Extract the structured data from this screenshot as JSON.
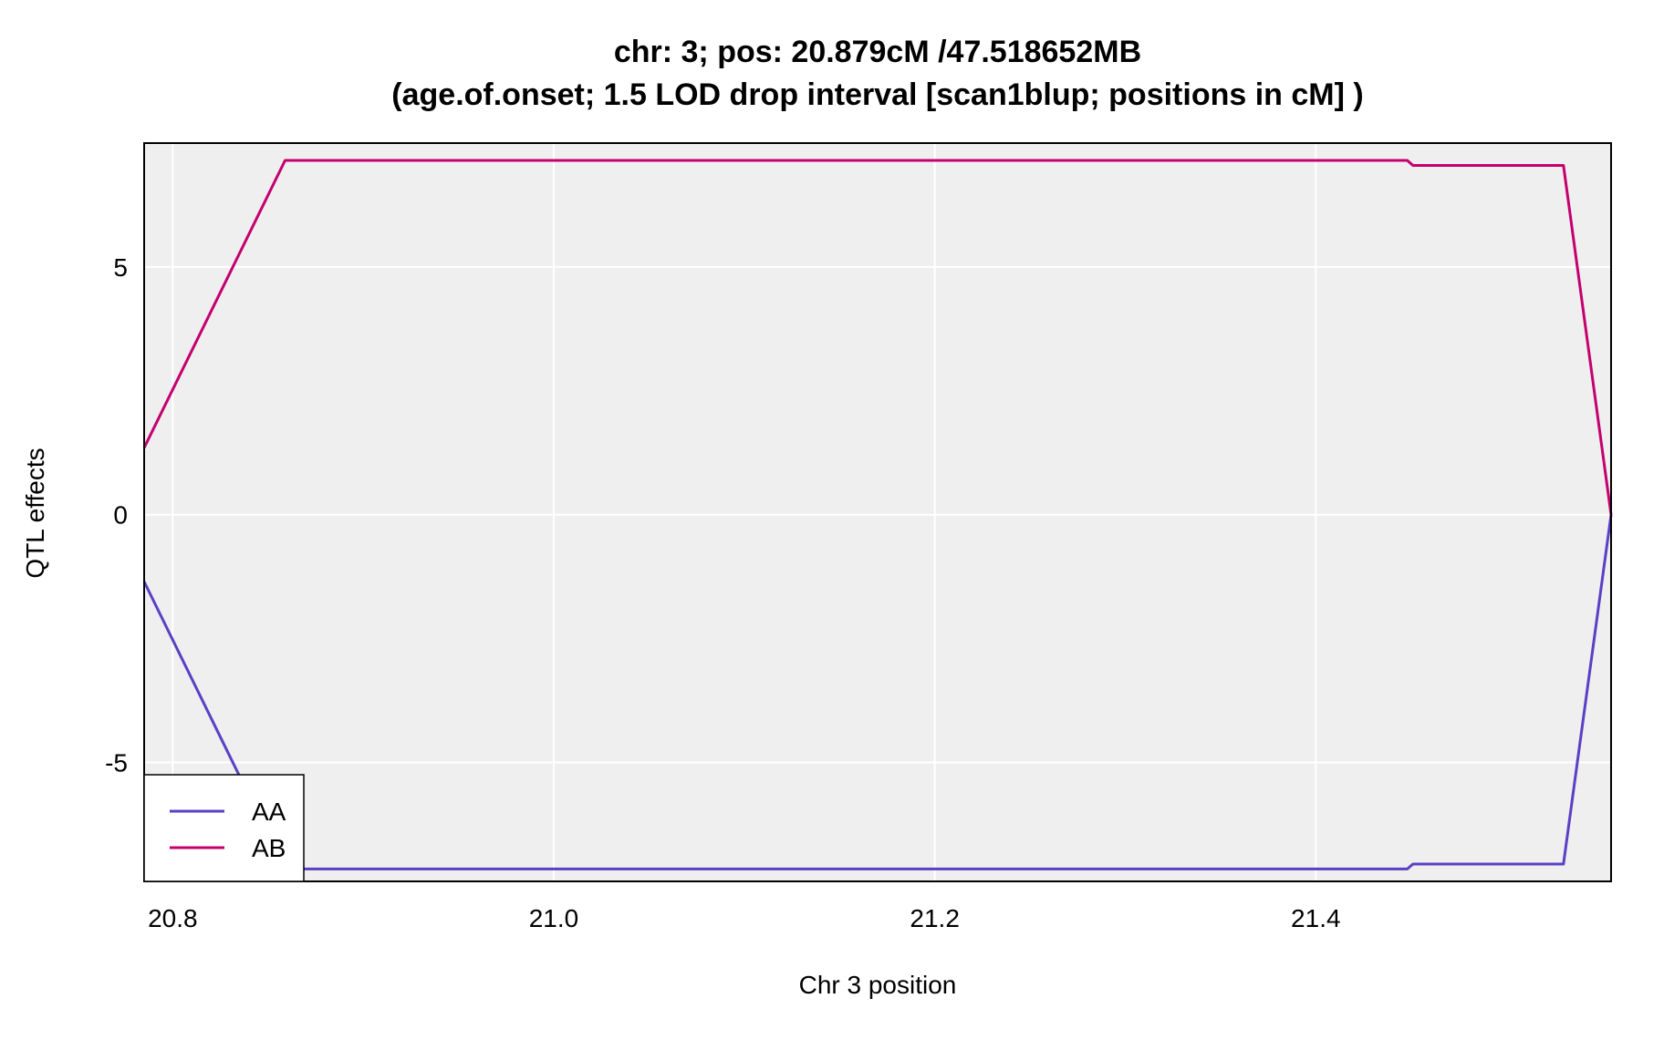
{
  "chart_data": {
    "type": "line",
    "title": "chr: 3; pos: 20.879cM /47.518652MB",
    "subtitle": "(age.of.onset; 1.5 LOD drop interval [scan1blup; positions in cM] )",
    "xlabel": "Chr 3 position",
    "ylabel": "QTL effects",
    "xlim": [
      20.785,
      21.555
    ],
    "ylim": [
      -7.4,
      7.5
    ],
    "xticks": [
      20.8,
      21.0,
      21.2,
      21.4
    ],
    "xtick_labels": [
      "20.8",
      "21.0",
      "21.2",
      "21.4"
    ],
    "yticks": [
      -5,
      0,
      5
    ],
    "ytick_labels": [
      "-5",
      "0",
      "5"
    ],
    "grid": true,
    "background": "#efefef",
    "legend": {
      "position": "bottom-left"
    },
    "series": [
      {
        "name": "AA",
        "color": "#5b3fc4",
        "x": [
          20.785,
          20.859,
          21.448,
          21.451,
          21.53,
          21.555
        ],
        "y": [
          -1.35,
          -7.15,
          -7.15,
          -7.05,
          -7.05,
          0
        ]
      },
      {
        "name": "AB",
        "color": "#c4006f",
        "x": [
          20.785,
          20.859,
          21.448,
          21.451,
          21.53,
          21.555
        ],
        "y": [
          1.35,
          7.15,
          7.15,
          7.05,
          7.05,
          0
        ]
      }
    ]
  }
}
